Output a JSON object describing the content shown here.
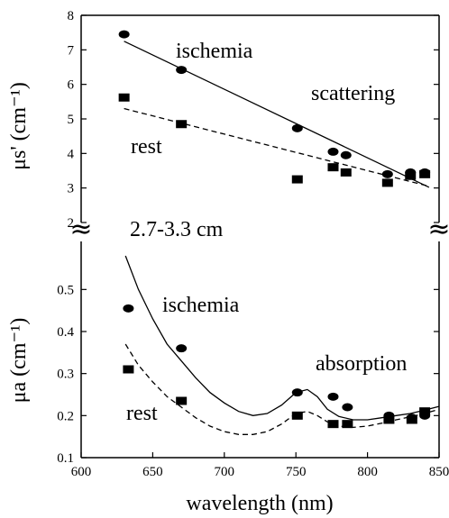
{
  "chart_data": [
    {
      "type": "scatter",
      "panel": "top",
      "ylabel": "μs' (cm⁻¹)",
      "ylim": [
        2,
        8
      ],
      "yticks": [
        "2",
        "3",
        "4",
        "5",
        "6",
        "7",
        "8"
      ],
      "xlim": [
        600,
        850
      ],
      "annotations": [
        "ischemia",
        "scattering",
        "rest",
        "2.7-3.3 cm"
      ],
      "series": [
        {
          "name": "ischemia",
          "marker": "circle",
          "x": [
            630,
            670,
            751,
            776,
            785,
            814,
            830,
            840
          ],
          "y": [
            7.45,
            6.42,
            4.73,
            4.05,
            3.95,
            3.4,
            3.45,
            3.45
          ]
        },
        {
          "name": "rest",
          "marker": "square",
          "x": [
            630,
            670,
            751,
            776,
            785,
            814,
            830,
            840
          ],
          "y": [
            5.62,
            4.85,
            3.25,
            3.6,
            3.45,
            3.15,
            3.35,
            3.4
          ]
        },
        {
          "name": "ischemia fit",
          "style": "solid",
          "x": [
            630,
            843
          ],
          "y": [
            7.25,
            3.02
          ]
        },
        {
          "name": "rest fit",
          "style": "dashed",
          "x": [
            630,
            843
          ],
          "y": [
            5.3,
            3.05
          ]
        }
      ]
    },
    {
      "type": "scatter",
      "panel": "bottom",
      "xlabel": "wavelength (nm)",
      "ylabel": "μa (cm⁻¹)",
      "ylim": [
        0.1,
        0.55
      ],
      "yticks": [
        "0.1",
        "0.2",
        "0.3",
        "0.4",
        "0.5"
      ],
      "xlim": [
        600,
        850
      ],
      "xticks": [
        "600",
        "650",
        "700",
        "750",
        "800",
        "850"
      ],
      "annotations": [
        "ischemia",
        "absorption",
        "rest"
      ],
      "series": [
        {
          "name": "ischemia",
          "marker": "circle",
          "x": [
            633,
            670,
            751,
            776,
            786,
            815,
            831,
            840
          ],
          "y": [
            0.455,
            0.36,
            0.255,
            0.245,
            0.22,
            0.2,
            0.195,
            0.2
          ]
        },
        {
          "name": "rest",
          "marker": "square",
          "x": [
            633,
            670,
            751,
            776,
            786,
            815,
            831,
            840
          ],
          "y": [
            0.31,
            0.235,
            0.2,
            0.18,
            0.18,
            0.19,
            0.19,
            0.21
          ]
        },
        {
          "name": "ischemia model",
          "style": "solid",
          "x": [
            631,
            640,
            650,
            660,
            670,
            680,
            690,
            700,
            710,
            720,
            730,
            740,
            750,
            758,
            765,
            772,
            780,
            790,
            800,
            810,
            820,
            830,
            840,
            850
          ],
          "y": [
            0.58,
            0.5,
            0.43,
            0.37,
            0.33,
            0.29,
            0.255,
            0.23,
            0.21,
            0.2,
            0.205,
            0.225,
            0.255,
            0.262,
            0.245,
            0.215,
            0.198,
            0.19,
            0.19,
            0.195,
            0.2,
            0.205,
            0.213,
            0.222
          ]
        },
        {
          "name": "rest model",
          "style": "dashed",
          "x": [
            631,
            640,
            650,
            660,
            670,
            680,
            690,
            700,
            710,
            720,
            730,
            740,
            750,
            758,
            765,
            772,
            780,
            790,
            800,
            810,
            820,
            830,
            840,
            850
          ],
          "y": [
            0.37,
            0.32,
            0.28,
            0.245,
            0.22,
            0.195,
            0.175,
            0.162,
            0.155,
            0.155,
            0.162,
            0.18,
            0.205,
            0.21,
            0.2,
            0.185,
            0.175,
            0.172,
            0.175,
            0.182,
            0.19,
            0.197,
            0.205,
            0.215
          ]
        }
      ]
    }
  ],
  "break_symbol": "≈"
}
